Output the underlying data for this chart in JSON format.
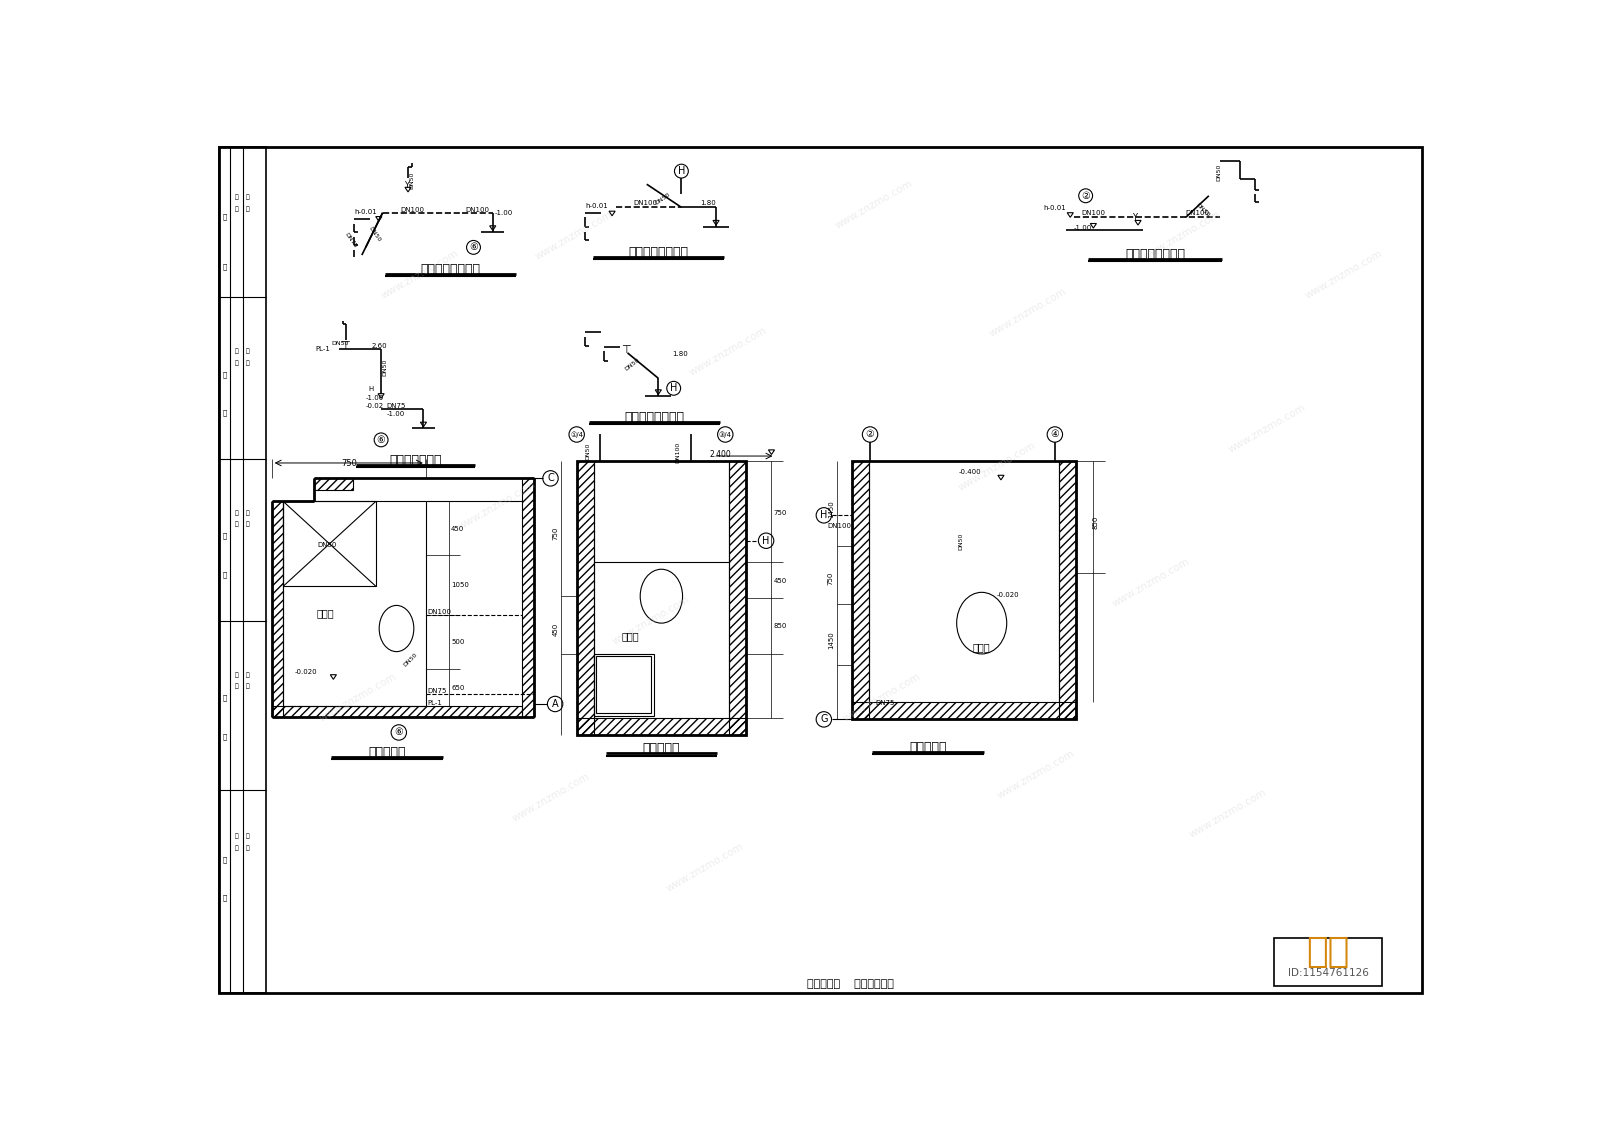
{
  "bg_color": "#ffffff",
  "line_color": "#000000",
  "lw_thin": 0.8,
  "lw_med": 1.2,
  "lw_thick": 2.0,
  "watermark_color": "#cccccc",
  "watermark_alpha": 0.35,
  "znzmo_color": "#d4860a",
  "title_fontsize": 9,
  "label_fontsize": 5.5,
  "section_titles": {
    "bathroom1": "卫生间排水透视图",
    "kitchen": "厂房排水透视图",
    "bathroom2": "卫生间排水透视图",
    "bathroom3": "卫生间排水透视图",
    "bathroom4": "卫生间排水透视图",
    "detail1": "卫生间详图",
    "detail2": "卫生间详图",
    "detail3": "卫生间详图",
    "bottom": "卫生间详图    给排水透视图"
  },
  "znzmo_text": "知末",
  "id_text": "ID:1154761126"
}
